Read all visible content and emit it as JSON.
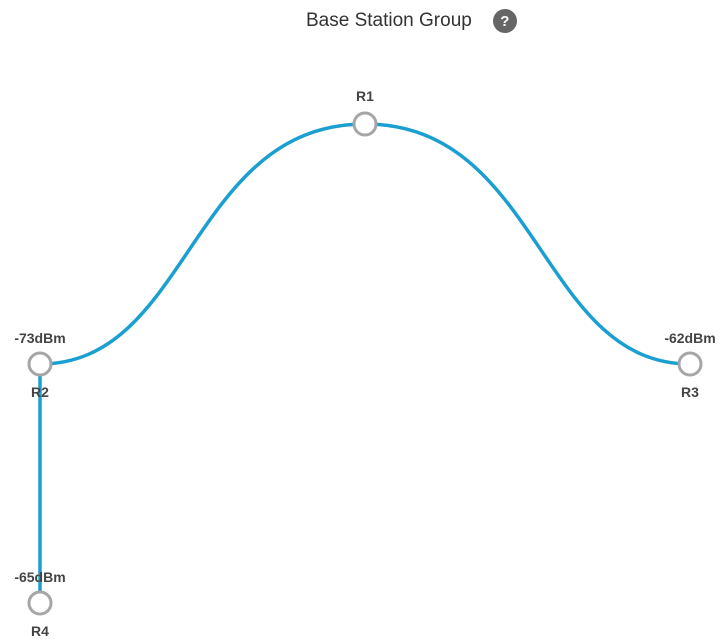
{
  "header": {
    "title": "Base Station Group",
    "help_glyph": "?",
    "help_icon": "question-circle-icon"
  },
  "colors": {
    "link": "#1a9fd0",
    "node_stroke": "#a6a6a6",
    "label": "#444444"
  },
  "topology": {
    "nodes": [
      {
        "id": "R1",
        "label": "R1",
        "signal": ""
      },
      {
        "id": "R2",
        "label": "R2",
        "signal": "-73dBm"
      },
      {
        "id": "R3",
        "label": "R3",
        "signal": "-62dBm"
      },
      {
        "id": "R4",
        "label": "R4",
        "signal": "-65dBm"
      }
    ],
    "links": [
      {
        "from": "R1",
        "to": "R2"
      },
      {
        "from": "R1",
        "to": "R3"
      },
      {
        "from": "R2",
        "to": "R4"
      }
    ]
  }
}
